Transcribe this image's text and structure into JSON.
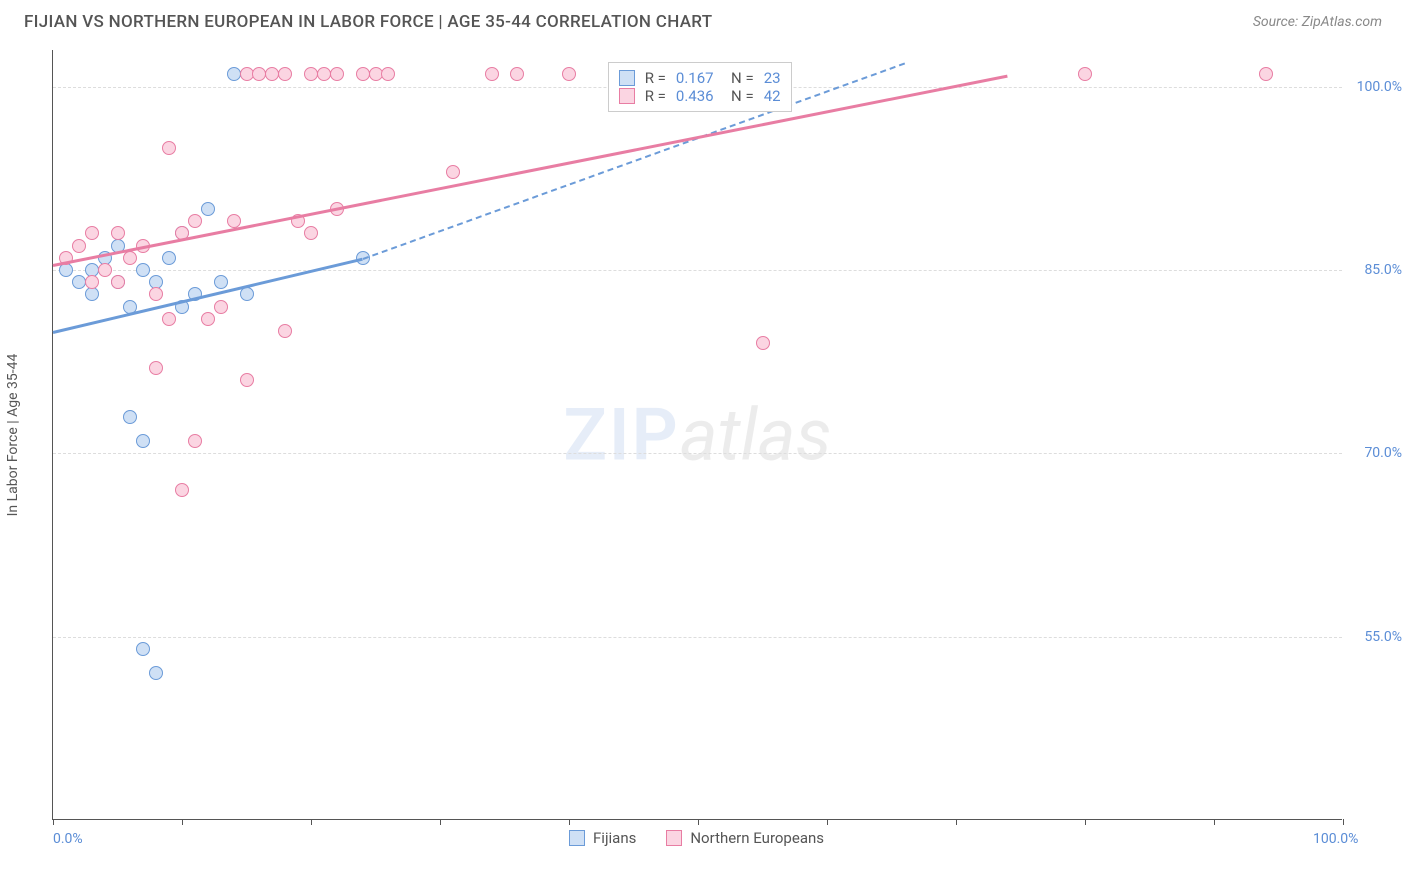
{
  "header": {
    "title": "FIJIAN VS NORTHERN EUROPEAN IN LABOR FORCE | AGE 35-44 CORRELATION CHART",
    "source": "Source: ZipAtlas.com"
  },
  "chart": {
    "y_axis_title": "In Labor Force | Age 35-44",
    "xlim": [
      0,
      100
    ],
    "ylim": [
      40,
      103
    ],
    "x_ticks": [
      0,
      10,
      20,
      30,
      40,
      50,
      60,
      70,
      80,
      90,
      100
    ],
    "x_tick_labels": {
      "0": "0.0%",
      "100": "100.0%"
    },
    "y_gridlines": [
      55,
      70,
      85,
      100
    ],
    "y_tick_labels": {
      "55": "55.0%",
      "70": "70.0%",
      "85": "85.0%",
      "100": "100.0%"
    },
    "grid_color": "#dddddd",
    "axis_color": "#555555",
    "tick_label_color": "#5b8dd6",
    "background_color": "#ffffff",
    "series": [
      {
        "name": "Fijians",
        "color_fill": "#cfe0f5",
        "color_stroke": "#6b9bd8",
        "R": "0.167",
        "N": "23",
        "trend": {
          "x1": 0,
          "y1": 80,
          "x2": 24,
          "y2": 86,
          "extend_x2": 66,
          "extend_y2": 102
        },
        "points": [
          [
            1,
            85
          ],
          [
            2,
            84
          ],
          [
            3,
            85
          ],
          [
            4,
            86
          ],
          [
            5,
            87
          ],
          [
            3,
            83
          ],
          [
            6,
            82
          ],
          [
            7,
            71
          ],
          [
            7,
            85
          ],
          [
            8,
            84
          ],
          [
            9,
            86
          ],
          [
            10,
            88
          ],
          [
            12,
            90
          ],
          [
            11,
            83
          ],
          [
            13,
            84
          ],
          [
            6,
            73
          ],
          [
            7,
            54
          ],
          [
            8,
            52
          ],
          [
            15,
            83
          ],
          [
            24,
            86
          ],
          [
            14,
            101
          ],
          [
            5,
            84
          ],
          [
            10,
            82
          ]
        ]
      },
      {
        "name": "Northern Europeans",
        "color_fill": "#fbd5e2",
        "color_stroke": "#e87da3",
        "R": "0.436",
        "N": "42",
        "trend": {
          "x1": 0,
          "y1": 85.5,
          "x2": 74,
          "y2": 101
        },
        "points": [
          [
            1,
            86
          ],
          [
            2,
            87
          ],
          [
            3,
            88
          ],
          [
            4,
            85
          ],
          [
            5,
            84
          ],
          [
            6,
            86
          ],
          [
            7,
            87
          ],
          [
            8,
            83
          ],
          [
            9,
            95
          ],
          [
            10,
            88
          ],
          [
            11,
            89
          ],
          [
            12,
            81
          ],
          [
            13,
            82
          ],
          [
            14,
            89
          ],
          [
            15,
            101
          ],
          [
            16,
            101
          ],
          [
            17,
            101
          ],
          [
            18,
            101
          ],
          [
            20,
            101
          ],
          [
            21,
            101
          ],
          [
            22,
            101
          ],
          [
            24,
            101
          ],
          [
            25,
            101
          ],
          [
            26,
            101
          ],
          [
            31,
            93
          ],
          [
            34,
            101
          ],
          [
            36,
            101
          ],
          [
            40,
            101
          ],
          [
            8,
            77
          ],
          [
            9,
            81
          ],
          [
            10,
            67
          ],
          [
            11,
            71
          ],
          [
            15,
            76
          ],
          [
            18,
            80
          ],
          [
            19,
            89
          ],
          [
            20,
            88
          ],
          [
            22,
            90
          ],
          [
            55,
            79
          ],
          [
            80,
            101
          ],
          [
            94,
            101
          ],
          [
            5,
            88
          ],
          [
            3,
            84
          ]
        ]
      }
    ],
    "watermark": {
      "zip": "ZIP",
      "atlas": "atlas"
    },
    "legend_left_pct": 40,
    "stat_box": {
      "left_pct": 43,
      "top_y": 102,
      "r_label": "R  =",
      "n_label": "N  ="
    }
  }
}
